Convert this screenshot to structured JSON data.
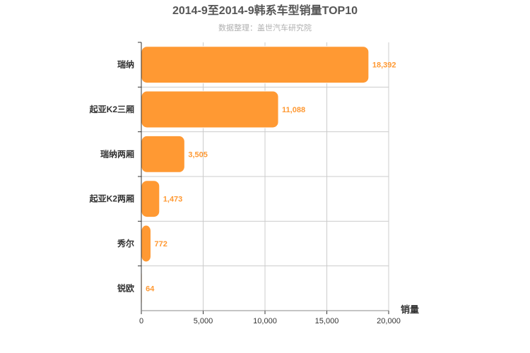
{
  "chart_data": {
    "type": "bar",
    "orientation": "horizontal",
    "title": "2014-9至2014-9韩系车型销量TOP10",
    "subtitle": "数据整理：盖世汽车研究院",
    "categories": [
      "瑞纳",
      "起亚K2三厢",
      "瑞纳两厢",
      "起亚K2两厢",
      "秀尔",
      "锐欧"
    ],
    "values": [
      18392,
      11088,
      3505,
      1473,
      772,
      64
    ],
    "value_labels": [
      "18,392",
      "11,088",
      "3,505",
      "1,473",
      "772",
      "64"
    ],
    "xlabel": "销量",
    "ylabel": "",
    "xlim": [
      0,
      20000
    ],
    "x_ticks": [
      0,
      5000,
      10000,
      15000,
      20000
    ],
    "x_tick_labels": [
      "0",
      "5,000",
      "10,000",
      "15,000",
      "20,000"
    ],
    "grid": true,
    "legend": "none",
    "colors": {
      "bar": "#ff9933",
      "bar_stroke": "#ffffff",
      "data_label": "#ff9933",
      "grid": "#cccccc",
      "axis": "#333333"
    }
  }
}
